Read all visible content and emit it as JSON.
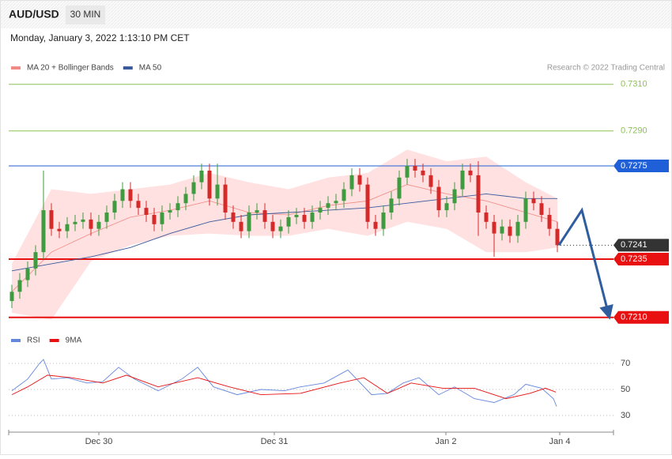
{
  "header": {
    "symbol": "AUD/USD",
    "timeframe": "30 MIN",
    "timestamp": "Monday, January 3, 2022 1:13:10 PM CET",
    "credit": "Research © 2022 Trading Central"
  },
  "chart_data": [
    {
      "type": "candlestick",
      "open": [
        0.7217,
        0.7221,
        0.7226,
        0.7231,
        0.7238,
        0.7256,
        0.7248,
        0.7247,
        0.725,
        0.7251,
        0.7252,
        0.7248,
        0.7251,
        0.7255,
        0.726,
        0.7265,
        0.726,
        0.7257,
        0.7254,
        0.725,
        0.7255,
        0.7256,
        0.7259,
        0.7263,
        0.7268,
        0.7273,
        0.7261,
        0.7267,
        0.7255,
        0.7251,
        0.7247,
        0.7255,
        0.7256,
        0.7251,
        0.7247,
        0.7249,
        0.7253,
        0.7254,
        0.7251,
        0.7255,
        0.7257,
        0.7259,
        0.726,
        0.7265,
        0.7271,
        0.7267,
        0.7251,
        0.7248,
        0.7255,
        0.7261,
        0.727,
        0.7275,
        0.7273,
        0.7271,
        0.7266,
        0.7256,
        0.7259,
        0.7265,
        0.7273,
        0.7271,
        0.7255,
        0.7251,
        0.7246,
        0.7249,
        0.7245,
        0.7251,
        0.7261,
        0.7259,
        0.7254,
        0.7248
      ],
      "high": [
        0.7224,
        0.7229,
        0.7234,
        0.7241,
        0.7273,
        0.7259,
        0.7251,
        0.7253,
        0.7254,
        0.7255,
        0.7255,
        0.7254,
        0.7258,
        0.7263,
        0.7268,
        0.7268,
        0.7263,
        0.726,
        0.7257,
        0.7258,
        0.7259,
        0.7262,
        0.7266,
        0.7271,
        0.7276,
        0.7276,
        0.7276,
        0.727,
        0.7258,
        0.7254,
        0.7258,
        0.7259,
        0.7259,
        0.7254,
        0.7252,
        0.7256,
        0.7257,
        0.7257,
        0.7258,
        0.726,
        0.7262,
        0.7263,
        0.7268,
        0.7274,
        0.7274,
        0.727,
        0.7254,
        0.7258,
        0.7264,
        0.7273,
        0.7278,
        0.7278,
        0.7276,
        0.7274,
        0.7269,
        0.7262,
        0.7268,
        0.7276,
        0.7276,
        0.7277,
        0.7258,
        0.7254,
        0.7252,
        0.7252,
        0.7254,
        0.7264,
        0.7264,
        0.7262,
        0.7257,
        0.7251
      ],
      "low": [
        0.7214,
        0.7218,
        0.7223,
        0.7228,
        0.7235,
        0.7245,
        0.7244,
        0.7244,
        0.7247,
        0.7248,
        0.7245,
        0.7245,
        0.7248,
        0.7252,
        0.7257,
        0.7257,
        0.7254,
        0.7251,
        0.7247,
        0.7247,
        0.7252,
        0.7253,
        0.7256,
        0.726,
        0.7265,
        0.7258,
        0.7258,
        0.7252,
        0.7248,
        0.7244,
        0.7244,
        0.7252,
        0.7248,
        0.7244,
        0.7244,
        0.7246,
        0.725,
        0.7248,
        0.7248,
        0.7252,
        0.7254,
        0.7256,
        0.7257,
        0.7262,
        0.7264,
        0.7248,
        0.7245,
        0.7245,
        0.7252,
        0.7258,
        0.7267,
        0.727,
        0.7268,
        0.7263,
        0.7253,
        0.7253,
        0.7256,
        0.7262,
        0.7268,
        0.7245,
        0.7248,
        0.7236,
        0.7243,
        0.7242,
        0.7242,
        0.7248,
        0.7256,
        0.7251,
        0.7245,
        0.7238
      ],
      "close": [
        0.7221,
        0.7226,
        0.7231,
        0.7238,
        0.7256,
        0.7248,
        0.7247,
        0.725,
        0.7251,
        0.7252,
        0.7248,
        0.7251,
        0.7255,
        0.726,
        0.7265,
        0.726,
        0.7257,
        0.7254,
        0.725,
        0.7255,
        0.7256,
        0.7259,
        0.7263,
        0.7268,
        0.7273,
        0.7261,
        0.7267,
        0.7255,
        0.7251,
        0.7247,
        0.7255,
        0.7256,
        0.7251,
        0.7247,
        0.7249,
        0.7253,
        0.7254,
        0.7251,
        0.7255,
        0.7257,
        0.7259,
        0.726,
        0.7265,
        0.7271,
        0.7267,
        0.7251,
        0.7248,
        0.7255,
        0.7261,
        0.727,
        0.7275,
        0.7273,
        0.7271,
        0.7266,
        0.7256,
        0.7259,
        0.7265,
        0.7273,
        0.7271,
        0.7255,
        0.7251,
        0.7246,
        0.7249,
        0.7245,
        0.7251,
        0.7261,
        0.7259,
        0.7254,
        0.7248,
        0.7241
      ],
      "up_color": "#3f9b3f",
      "down_color": "#d42a2a",
      "bands": {
        "name": "MA 20 + Bollinger Bands",
        "color": "#f08a84",
        "fill": "#ffdcdc",
        "x": [
          0,
          5,
          10,
          15,
          20,
          25,
          30,
          35,
          40,
          45,
          50,
          55,
          60,
          65,
          69
        ],
        "upper": [
          0.7233,
          0.7265,
          0.7263,
          0.7265,
          0.7267,
          0.7272,
          0.7268,
          0.7265,
          0.727,
          0.7272,
          0.7282,
          0.7277,
          0.7279,
          0.7268,
          0.7261
        ],
        "middle": [
          0.7221,
          0.7238,
          0.7246,
          0.7253,
          0.7256,
          0.726,
          0.7255,
          0.7254,
          0.7258,
          0.726,
          0.7267,
          0.7263,
          0.726,
          0.7255,
          0.7251
        ],
        "lower": [
          0.7212,
          0.7209,
          0.7234,
          0.7241,
          0.7245,
          0.7246,
          0.7245,
          0.7245,
          0.7248,
          0.7245,
          0.7251,
          0.7248,
          0.7238,
          0.7238,
          0.724
        ]
      },
      "ma50": {
        "name": "MA 50",
        "color": "#3b5a9c",
        "x": [
          0,
          5,
          10,
          15,
          20,
          25,
          30,
          35,
          40,
          45,
          50,
          55,
          60,
          65,
          69
        ],
        "values": [
          0.723,
          0.7233,
          0.7236,
          0.724,
          0.7246,
          0.7251,
          0.7254,
          0.7255,
          0.7256,
          0.7257,
          0.7259,
          0.7261,
          0.7263,
          0.7261,
          0.7261
        ]
      },
      "levels": [
        {
          "value": 0.731,
          "label": "0.7310",
          "color": "#8cc152",
          "boxed": false
        },
        {
          "value": 0.729,
          "label": "0.7290",
          "color": "#8cc152",
          "boxed": false
        },
        {
          "value": 0.7275,
          "label": "0.7275",
          "color": "#1f5fd8",
          "boxed": true
        },
        {
          "value": 0.7241,
          "label": "0.7241",
          "color": "#333333",
          "boxed": true,
          "dotted": true
        },
        {
          "value": 0.7235,
          "label": "0.7235",
          "color": "#e81010",
          "boxed": true
        },
        {
          "value": 0.721,
          "label": "0.7210",
          "color": "#e81010",
          "boxed": true
        }
      ],
      "forecast": {
        "color": "#2f5d9e",
        "x": [
          69.2,
          72.1,
          75.5
        ],
        "values": [
          0.7241,
          0.7256,
          0.7211
        ]
      },
      "xlim": [
        -0.4,
        76.1
      ],
      "ylim": [
        0.7207,
        0.7314
      ]
    },
    {
      "type": "line",
      "series": [
        {
          "name": "RSI",
          "color": "#6487dc",
          "x": [
            0,
            2,
            3.5,
            4,
            5,
            7,
            9.5,
            11.5,
            13.5,
            15.5,
            18.5,
            21.5,
            23.5,
            25.5,
            28.5,
            31.5,
            34.5,
            36.5,
            39.5,
            42.5,
            45.5,
            47.5,
            49.5,
            51.5,
            54,
            56,
            58.5,
            61,
            63.5,
            65,
            67,
            68.5,
            68.9
          ],
          "values": [
            49,
            58,
            70,
            73,
            58,
            59,
            55,
            56,
            67,
            58,
            49,
            58,
            67,
            52,
            46,
            50,
            49,
            52,
            55,
            65,
            46,
            47,
            55,
            59,
            46,
            52,
            43,
            40,
            46,
            54,
            51,
            43,
            37
          ]
        },
        {
          "name": "9MA",
          "color": "#e81010",
          "x": [
            0,
            2,
            4.5,
            7.5,
            11.5,
            14.5,
            18.5,
            23.5,
            27.5,
            31.5,
            36.5,
            41.5,
            44.5,
            47.5,
            50.5,
            54.5,
            58.5,
            62.5,
            65.5,
            67.5,
            68.8
          ],
          "values": [
            46,
            52,
            61,
            59,
            55,
            61,
            52,
            59,
            52,
            46,
            47,
            55,
            59,
            47,
            55,
            51,
            51,
            43,
            47,
            51,
            48
          ]
        }
      ],
      "xlim": [
        -0.4,
        76.1
      ],
      "ylim": [
        20,
        80
      ],
      "yticks": [
        70,
        50,
        30
      ],
      "xticks": [
        {
          "value": 11,
          "label": "Dec 30"
        },
        {
          "value": 33.2,
          "label": "Dec 31"
        },
        {
          "value": 54.9,
          "label": "Jan 2"
        },
        {
          "value": 69.3,
          "label": "Jan 4"
        }
      ]
    }
  ]
}
